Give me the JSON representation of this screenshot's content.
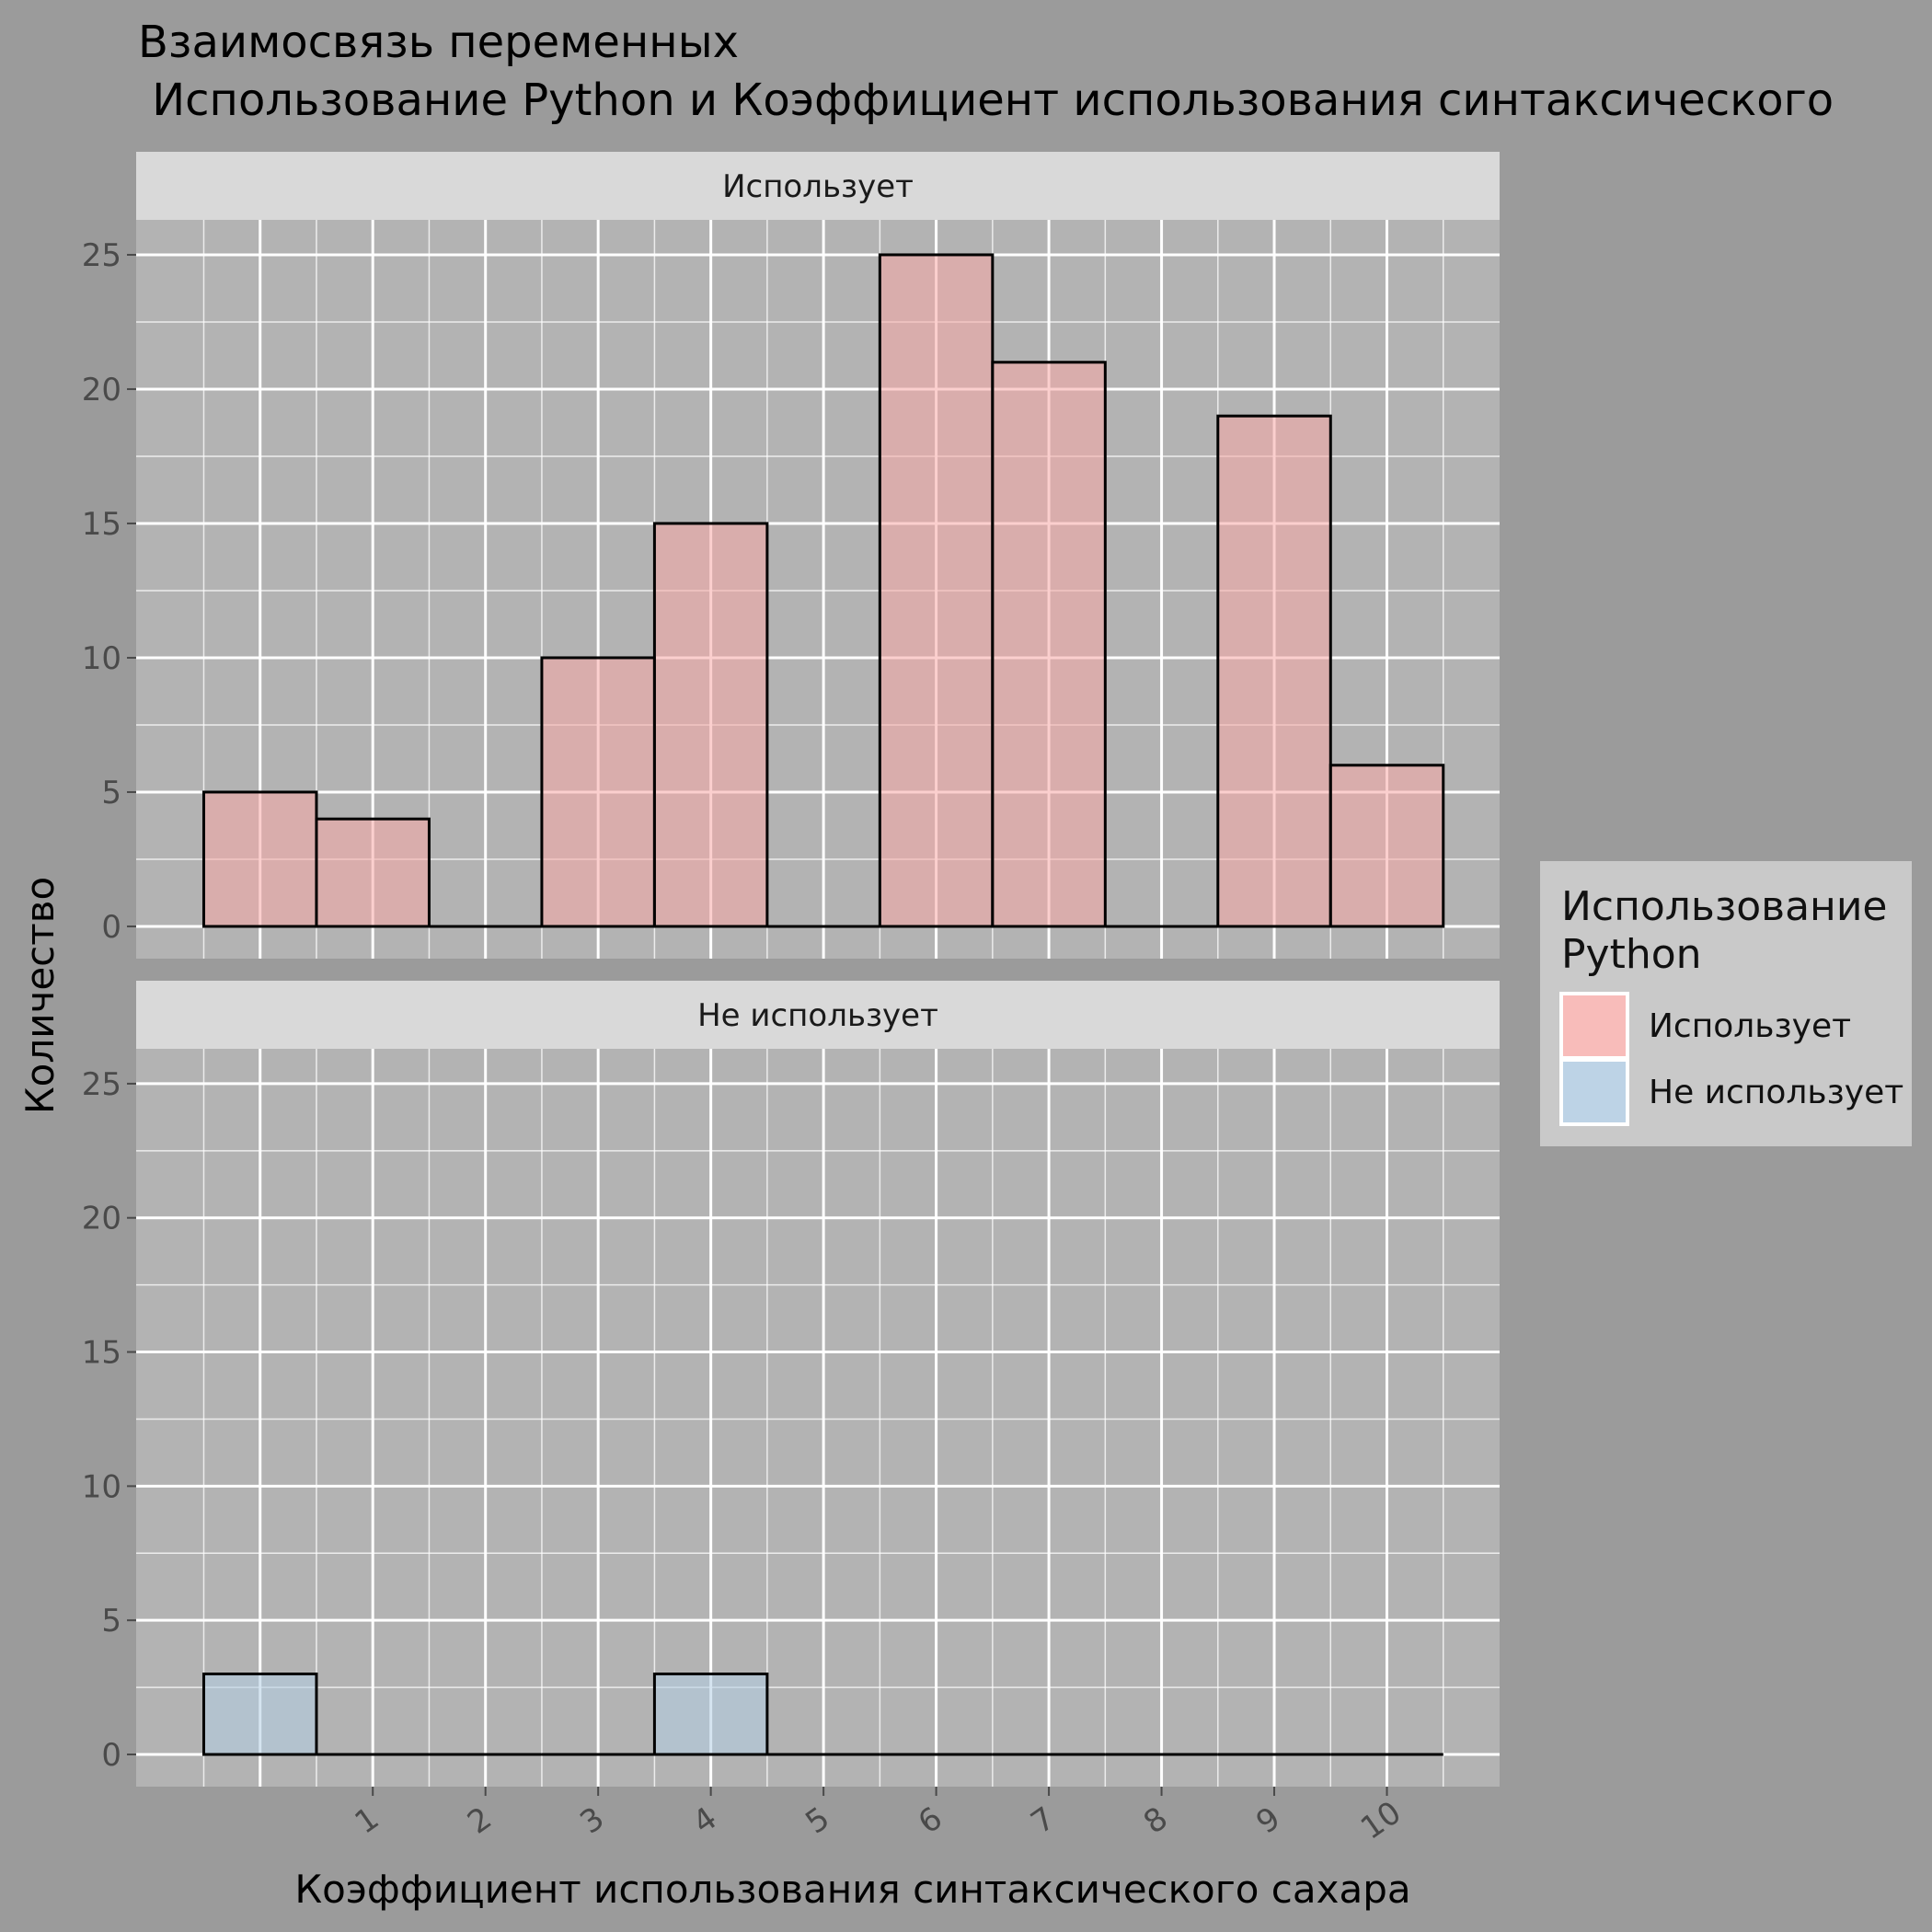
{
  "chart_data": {
    "type": "bar",
    "title_line1": "Взаимосвязь переменных",
    "title_line2": " Использование Python и Коэффициент использования синтаксического",
    "xlabel": "Коэффициент использования синтаксического сахара",
    "ylabel": "Количество",
    "x_ticks": [
      1,
      2,
      3,
      4,
      5,
      6,
      7,
      8,
      9,
      10
    ],
    "x_range": [
      -1.1,
      11
    ],
    "y_ticks": [
      0,
      5,
      10,
      15,
      20,
      25
    ],
    "ylim": [
      -1.2,
      26.3
    ],
    "bin_width": 1,
    "x_centers": [
      0,
      1,
      2,
      3,
      4,
      5,
      6,
      7,
      8,
      9,
      10
    ],
    "facets": [
      {
        "label": "Использует",
        "color": "#f8a8a6",
        "values": [
          5,
          4,
          0,
          10,
          15,
          0,
          25,
          21,
          0,
          19,
          6
        ]
      },
      {
        "label": "Не использует",
        "color": "#b3cde3",
        "values": [
          3,
          0,
          0,
          0,
          3,
          0,
          0,
          0,
          0,
          0,
          0
        ]
      }
    ],
    "legend": {
      "title_line1": "Использование",
      "title_line2": "Python",
      "position": "right",
      "items": [
        {
          "label": "Использует",
          "color": "#f8bcba"
        },
        {
          "label": "Не использует",
          "color": "#bdd3e6"
        }
      ]
    },
    "grid": true
  }
}
